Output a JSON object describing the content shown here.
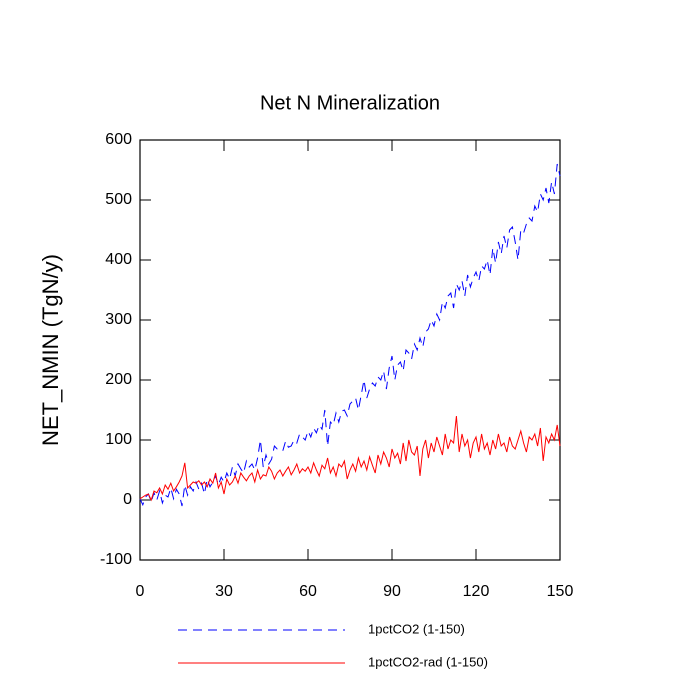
{
  "chart_data": {
    "type": "line",
    "title": "Net N Mineralization",
    "y_label": "NET_NMIN  (TgN/y)",
    "x": [
      0,
      1,
      2,
      3,
      4,
      5,
      6,
      7,
      8,
      9,
      10,
      11,
      12,
      13,
      14,
      15,
      16,
      17,
      18,
      19,
      20,
      21,
      22,
      23,
      24,
      25,
      26,
      27,
      28,
      29,
      30,
      31,
      32,
      33,
      34,
      35,
      36,
      37,
      38,
      39,
      40,
      41,
      42,
      43,
      44,
      45,
      46,
      47,
      48,
      49,
      50,
      51,
      52,
      53,
      54,
      55,
      56,
      57,
      58,
      59,
      60,
      61,
      62,
      63,
      64,
      65,
      66,
      67,
      68,
      69,
      70,
      71,
      72,
      73,
      74,
      75,
      76,
      77,
      78,
      79,
      80,
      81,
      82,
      83,
      84,
      85,
      86,
      87,
      88,
      89,
      90,
      91,
      92,
      93,
      94,
      95,
      96,
      97,
      98,
      99,
      100,
      101,
      102,
      103,
      104,
      105,
      106,
      107,
      108,
      109,
      110,
      111,
      112,
      113,
      114,
      115,
      116,
      117,
      118,
      119,
      120,
      121,
      122,
      123,
      124,
      125,
      126,
      127,
      128,
      129,
      130,
      131,
      132,
      133,
      134,
      135,
      136,
      137,
      138,
      139,
      140,
      141,
      142,
      143,
      144,
      145,
      146,
      147,
      148,
      149,
      150
    ],
    "series": [
      {
        "name": "1pctCO2 (1-150)",
        "color": "#0000ff",
        "dash": true,
        "values": [
          2,
          -8,
          5,
          10,
          -3,
          12,
          0,
          15,
          -5,
          8,
          5,
          20,
          2,
          18,
          10,
          -10,
          25,
          8,
          22,
          15,
          30,
          18,
          28,
          10,
          35,
          22,
          30,
          40,
          25,
          38,
          30,
          45,
          35,
          55,
          40,
          60,
          52,
          45,
          65,
          55,
          60,
          50,
          70,
          100,
          55,
          75,
          60,
          68,
          90,
          85,
          85,
          82,
          98,
          88,
          90,
          100,
          95,
          110,
          105,
          100,
          115,
          105,
          120,
          112,
          125,
          118,
          150,
          90,
          130,
          125,
          145,
          130,
          148,
          150,
          140,
          160,
          165,
          170,
          150,
          175,
          200,
          170,
          185,
          195,
          190,
          205,
          200,
          215,
          185,
          220,
          240,
          200,
          225,
          230,
          215,
          250,
          245,
          235,
          260,
          250,
          270,
          255,
          280,
          285,
          300,
          290,
          310,
          300,
          330,
          320,
          340,
          345,
          320,
          360,
          350,
          365,
          340,
          375,
          355,
          370,
          380,
          365,
          390,
          385,
          400,
          375,
          420,
          395,
          430,
          410,
          440,
          420,
          450,
          455,
          430,
          400,
          450,
          445,
          460,
          470,
          465,
          490,
          480,
          510,
          500,
          520,
          495,
          530,
          510,
          560,
          540
        ]
      },
      {
        "name": "1pctCO2-rad (1-150)",
        "color": "#ff0000",
        "dash": false,
        "values": [
          2,
          5,
          8,
          10,
          0,
          15,
          12,
          20,
          10,
          25,
          18,
          28,
          15,
          22,
          30,
          40,
          62,
          20,
          25,
          30,
          28,
          32,
          25,
          30,
          22,
          35,
          28,
          45,
          20,
          30,
          10,
          35,
          25,
          30,
          40,
          28,
          45,
          38,
          32,
          40,
          45,
          30,
          50,
          35,
          42,
          40,
          55,
          48,
          35,
          45,
          50,
          40,
          48,
          55,
          42,
          50,
          60,
          45,
          52,
          48,
          55,
          45,
          62,
          50,
          40,
          58,
          52,
          70,
          45,
          55,
          40,
          60,
          55,
          65,
          35,
          50,
          60,
          48,
          70,
          55,
          65,
          50,
          72,
          58,
          45,
          75,
          60,
          80,
          70,
          55,
          85,
          70,
          78,
          60,
          95,
          65,
          100,
          80,
          75,
          90,
          40,
          85,
          100,
          70,
          95,
          80,
          105,
          90,
          75,
          110,
          85,
          100,
          95,
          140,
          80,
          110,
          90,
          100,
          70,
          95,
          105,
          80,
          110,
          85,
          95,
          75,
          100,
          85,
          110,
          90,
          95,
          80,
          105,
          90,
          85,
          100,
          115,
          95,
          80,
          105,
          100,
          110,
          90,
          120,
          65,
          105,
          95,
          110,
          100,
          125,
          90
        ]
      }
    ],
    "xlim": [
      0,
      150
    ],
    "xticks": [
      0,
      30,
      60,
      90,
      120,
      150
    ],
    "ylim": [
      -100,
      600
    ],
    "yticks": [
      -100,
      0,
      100,
      200,
      300,
      400,
      500,
      600
    ]
  }
}
